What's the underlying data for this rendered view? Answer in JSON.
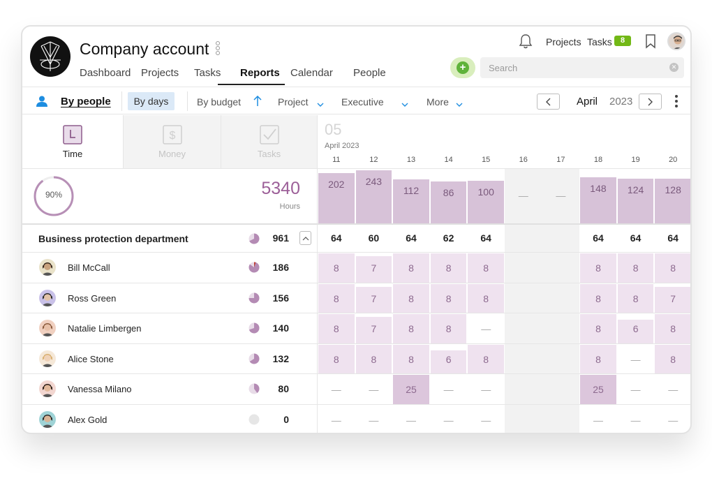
{
  "company": {
    "title": "Company account"
  },
  "nav": [
    {
      "label": "Dashboard",
      "active": false
    },
    {
      "label": "Projects",
      "active": false
    },
    {
      "label": "Tasks",
      "active": false
    },
    {
      "label": "Reports",
      "active": true
    },
    {
      "label": "Calendar",
      "active": false
    },
    {
      "label": "People",
      "active": false
    }
  ],
  "header": {
    "projects_link": "Projects",
    "tasks_link": "Tasks",
    "tasks_badge": "8",
    "search_placeholder": "Search",
    "icons": [
      "bell-icon",
      "bookmark-icon",
      "plus-icon",
      "clear-icon"
    ]
  },
  "toolbar": {
    "by_people": "By people",
    "by_days": "By days",
    "by_budget": "By budget",
    "project": "Project",
    "executive": "Executive",
    "more": "More",
    "month": "April",
    "year": "2023"
  },
  "metric_tabs": [
    {
      "label": "Time",
      "active": true
    },
    {
      "label": "Money",
      "active": false
    },
    {
      "label": "Tasks",
      "active": false
    }
  ],
  "dates": {
    "big_day": "05",
    "month_year": "April 2023",
    "days": [
      "11",
      "12",
      "13",
      "14",
      "15",
      "16",
      "17",
      "18",
      "19",
      "20"
    ],
    "weekend_flags": [
      false,
      false,
      false,
      false,
      false,
      true,
      true,
      false,
      false,
      false
    ]
  },
  "summary": {
    "percent": "90%",
    "percent_value": 0.9,
    "total": "5340",
    "unit": "Hours",
    "day_totals": [
      "202",
      "243",
      "112",
      "86",
      "100",
      "—",
      "—",
      "148",
      "124",
      "128"
    ]
  },
  "department": {
    "name": "Business protection department",
    "total": "961",
    "day_values": [
      "64",
      "60",
      "64",
      "62",
      "64",
      "",
      "",
      "64",
      "64",
      "64"
    ]
  },
  "people": [
    {
      "name": "Bill McCall",
      "total": "186",
      "skin": "#c9a27e",
      "hair": "#3a2a1f",
      "bg": "#e9e2c9",
      "pie_fill": 0.85,
      "pie_accent": "#c0392b",
      "days": [
        "8",
        "7",
        "8",
        "8",
        "8",
        "",
        "",
        "8",
        "8",
        "8"
      ]
    },
    {
      "name": "Ross Green",
      "total": "156",
      "skin": "#e3c3a8",
      "hair": "#2a2a2a",
      "bg": "#c9c1e8",
      "pie_fill": 0.75,
      "pie_accent": "",
      "days": [
        "8",
        "7",
        "8",
        "8",
        "8",
        "",
        "",
        "8",
        "8",
        "7"
      ]
    },
    {
      "name": "Natalie Limbergen",
      "total": "140",
      "skin": "#e8c0a8",
      "hair": "#8a5a3c",
      "bg": "#f0d0c0",
      "pie_fill": 0.7,
      "pie_accent": "",
      "days": [
        "8",
        "7",
        "8",
        "8",
        "—",
        "",
        "",
        "8",
        "6",
        "8"
      ]
    },
    {
      "name": "Alice Stone",
      "total": "132",
      "skin": "#f0d2b8",
      "hair": "#d8b070",
      "bg": "#f5e8d8",
      "pie_fill": 0.66,
      "pie_accent": "",
      "days": [
        "8",
        "8",
        "8",
        "6",
        "8",
        "",
        "",
        "8",
        "—",
        "8"
      ]
    },
    {
      "name": "Vanessa Milano",
      "total": "80",
      "skin": "#e2b89a",
      "hair": "#2b1d16",
      "bg": "#f2d6d0",
      "pie_fill": 0.4,
      "pie_accent": "",
      "days": [
        "—",
        "—",
        "25",
        "—",
        "—",
        "",
        "",
        "25",
        "—",
        "—"
      ]
    },
    {
      "name": "Alex Gold",
      "total": "0",
      "skin": "#d8b496",
      "hair": "#2b2b2b",
      "bg": "#9fd3d6",
      "pie_fill": 0,
      "pie_accent": "",
      "days": [
        "—",
        "—",
        "—",
        "—",
        "—",
        "",
        "",
        "—",
        "—",
        "—"
      ]
    }
  ]
}
